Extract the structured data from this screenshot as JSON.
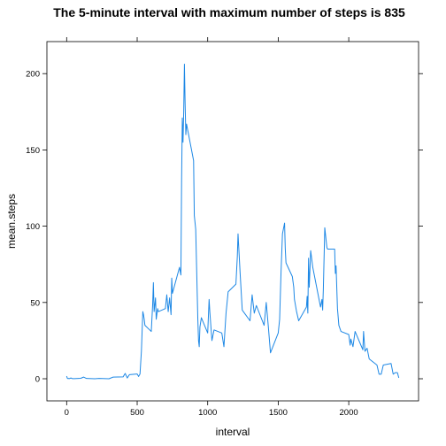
{
  "chart_data": {
    "type": "line",
    "title": "The 5-minute interval with maximum number of steps is 835",
    "xlabel": "interval",
    "ylabel": "mean.steps",
    "xlim": [
      -140,
      2495
    ],
    "ylim": [
      -14.5,
      221
    ],
    "x_ticks": [
      0,
      500,
      1000,
      1500,
      2000
    ],
    "y_ticks": [
      0,
      50,
      100,
      150,
      200
    ],
    "grid": false,
    "colors": {
      "series": "#1E88E5",
      "frame": "#000000"
    },
    "series": [
      {
        "x": [
          0,
          5,
          10,
          15,
          20,
          30,
          40,
          55,
          100,
          120,
          140,
          200,
          230,
          300,
          330,
          400,
          415,
          430,
          445,
          500,
          510,
          520,
          530,
          540,
          545,
          550,
          555,
          600,
          605,
          610,
          615,
          620,
          630,
          635,
          645,
          650,
          700,
          710,
          720,
          730,
          740,
          745,
          750,
          800,
          810,
          815,
          820,
          825,
          830,
          835,
          840,
          845,
          850,
          900,
          905,
          915,
          930,
          935,
          940,
          945,
          955,
          1000,
          1010,
          1015,
          1030,
          1045,
          1100,
          1115,
          1130,
          1145,
          1200,
          1210,
          1215,
          1230,
          1245,
          1300,
          1315,
          1330,
          1345,
          1400,
          1415,
          1430,
          1445,
          1500,
          1510,
          1520,
          1530,
          1545,
          1550,
          1555,
          1600,
          1610,
          1615,
          1630,
          1645,
          1700,
          1705,
          1710,
          1715,
          1720,
          1730,
          1745,
          1800,
          1810,
          1815,
          1820,
          1830,
          1845,
          1850,
          1900,
          1905,
          1910,
          1920,
          1930,
          1945,
          2000,
          2010,
          2015,
          2030,
          2045,
          2100,
          2105,
          2115,
          2130,
          2145,
          2200,
          2210,
          2215,
          2230,
          2245,
          2300,
          2315,
          2330,
          2345,
          2355
        ],
        "y": [
          1.7,
          0.3,
          0.1,
          0.2,
          0.1,
          0.5,
          0.1,
          0.1,
          0.3,
          1.1,
          0.2,
          0.0,
          0.2,
          0.0,
          1.1,
          1.2,
          3.5,
          0.5,
          2.7,
          3.1,
          1.5,
          3.1,
          18.0,
          44.0,
          42.0,
          39.0,
          35.0,
          31.0,
          40.0,
          49.0,
          63.0,
          44.0,
          53.0,
          39.0,
          46.0,
          44.0,
          46.0,
          55.0,
          44.0,
          53.0,
          42.0,
          66.0,
          56.0,
          73.0,
          68.0,
          130.0,
          171.0,
          155.0,
          175.0,
          206.2,
          180.0,
          160.0,
          167.0,
          143.0,
          107.0,
          98.0,
          39.0,
          25.0,
          21.0,
          34.0,
          40.0,
          30.0,
          52.0,
          44.0,
          25.0,
          32.0,
          30.0,
          21.0,
          43.0,
          57.0,
          62.0,
          80.0,
          95.0,
          69.0,
          45.0,
          38.0,
          55.0,
          43.0,
          48.0,
          35.0,
          50.0,
          34.0,
          17.0,
          30.0,
          39.0,
          70.0,
          95.0,
          102.0,
          85.0,
          76.0,
          67.0,
          60.0,
          52.0,
          44.0,
          38.0,
          47.0,
          54.0,
          43.0,
          79.0,
          60.0,
          84.0,
          73.0,
          47.0,
          52.0,
          45.0,
          59.0,
          99.0,
          86.0,
          85.0,
          85.0,
          69.0,
          74.0,
          46.0,
          35.0,
          31.0,
          29.0,
          22.0,
          26.0,
          21.0,
          31.0,
          19.0,
          31.0,
          18.0,
          20.0,
          13.0,
          9.0,
          5.0,
          3.0,
          3.0,
          9.0,
          10.0,
          3.0,
          4.0,
          4.0,
          0.6
        ]
      }
    ]
  }
}
